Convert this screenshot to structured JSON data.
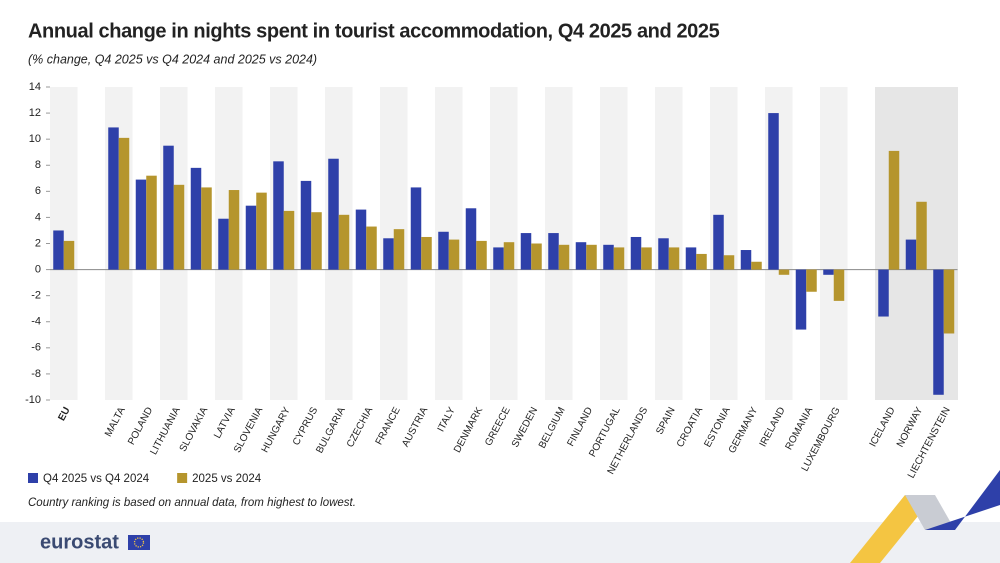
{
  "chart_data": {
    "type": "bar",
    "title": "Annual change in nights spent in tourist accommodation, Q4 2025 and 2025",
    "subtitle": "(% change, Q4 2025 vs Q4 2024 and 2025 vs 2024)",
    "note": "Country ranking is based on annual data, from highest to lowest.",
    "logo": "eurostat",
    "categories": [
      "EU",
      null,
      "MALTA",
      "POLAND",
      "LITHUANIA",
      "SLOVAKIA",
      "LATVIA",
      "SLOVENIA",
      "HUNGARY",
      "CYPRUS",
      "BULGARIA",
      "CZECHIA",
      "FRANCE",
      "AUSTRIA",
      "ITALY",
      "DENMARK",
      "GREECE",
      "SWEDEN",
      "BELGIUM",
      "FINLAND",
      "PORTUGAL",
      "NETHERLANDS",
      "SPAIN",
      "CROATIA",
      "ESTONIA",
      "GERMANY",
      "IRELAND",
      "ROMANIA",
      "LUXEMBOURG",
      null,
      "ICELAND",
      "NORWAY",
      "LIECHTENSTEIN"
    ],
    "series": [
      {
        "name": "Q4 2025 vs Q4 2024",
        "color": "#2e40a9",
        "values": [
          3.0,
          null,
          10.9,
          6.9,
          9.5,
          7.8,
          3.9,
          4.9,
          8.3,
          6.8,
          8.5,
          4.6,
          2.4,
          6.3,
          2.9,
          4.7,
          1.7,
          2.8,
          2.8,
          2.1,
          1.9,
          2.5,
          2.4,
          1.7,
          4.2,
          1.5,
          12.0,
          -4.6,
          -0.4,
          null,
          -3.6,
          2.3,
          -9.6
        ]
      },
      {
        "name": "2025 vs 2024",
        "color": "#b5952d",
        "values": [
          2.2,
          null,
          10.1,
          7.2,
          6.5,
          6.3,
          6.1,
          5.9,
          4.5,
          4.4,
          4.2,
          3.3,
          3.1,
          2.5,
          2.3,
          2.2,
          2.1,
          2.0,
          1.9,
          1.9,
          1.7,
          1.7,
          1.7,
          1.2,
          1.1,
          0.6,
          -0.4,
          -1.7,
          -2.4,
          null,
          9.1,
          5.2,
          -4.9
        ]
      }
    ],
    "ylim": [
      -10,
      14
    ],
    "yticks": [
      14,
      12,
      10,
      8,
      6,
      4,
      2,
      0,
      -2,
      -4,
      -6,
      -8,
      -10
    ],
    "legend": "bottom-left"
  }
}
